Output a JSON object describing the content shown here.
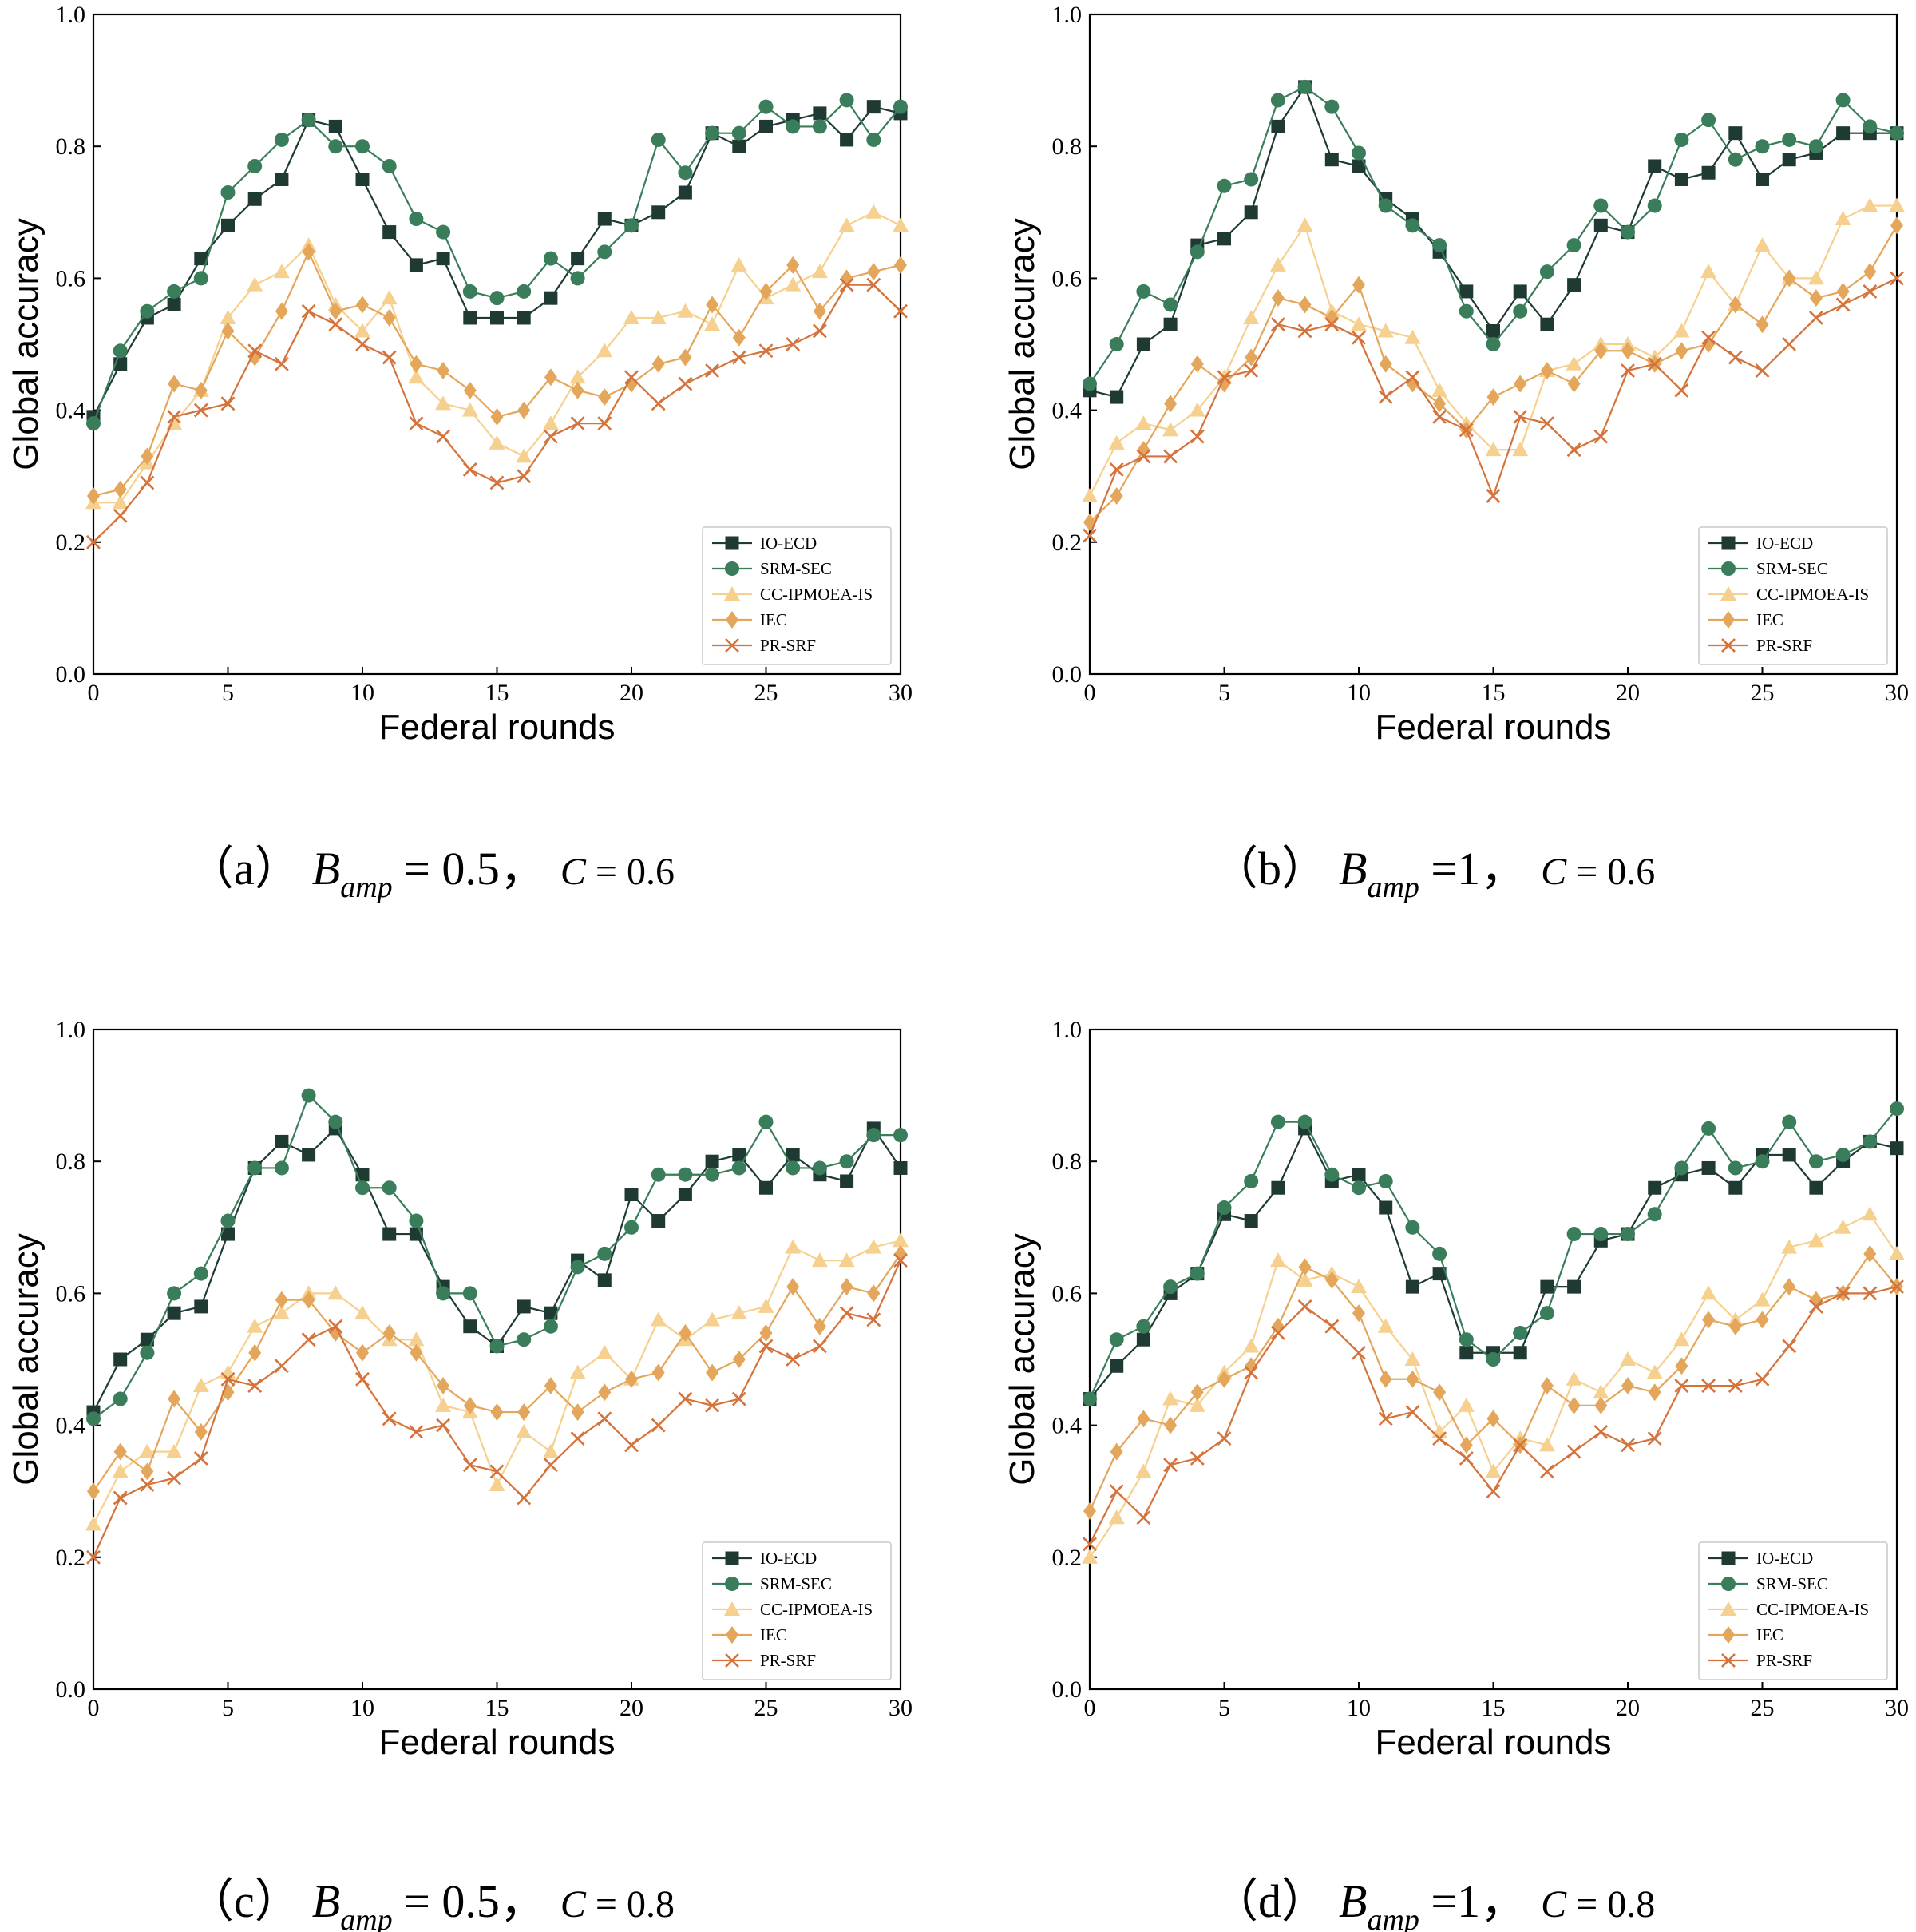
{
  "colors": {
    "IO-ECD": "#1f3a33",
    "SRM-SEC": "#3a7d5a",
    "CC-IPMOEA-IS": "#f6d08f",
    "IEC": "#e3a65a",
    "PR-SRF": "#d4733b"
  },
  "markers": {
    "IO-ECD": "square",
    "SRM-SEC": "circle",
    "CC-IPMOEA-IS": "triangle",
    "IEC": "diamond",
    "PR-SRF": "x"
  },
  "chart_data": [
    {
      "type": "line",
      "panel": "a",
      "xlabel": "Federal rounds",
      "ylabel": "Global accuracy",
      "xlim": [
        0,
        30
      ],
      "ylim": [
        0,
        1.0
      ],
      "xticks": [
        "0",
        "5",
        "10",
        "15",
        "20",
        "25",
        "30"
      ],
      "yticks": [
        "0.0",
        "0.2",
        "0.4",
        "0.6",
        "0.8",
        "1.0"
      ],
      "legend_position": "bottom-right",
      "caption": {
        "label": "（a）",
        "var": "B",
        "sub": "amp",
        "eq": " = 0.5，",
        "c": "C",
        "ceq": " = 0.6"
      },
      "x": [
        0,
        1,
        2,
        3,
        4,
        5,
        6,
        7,
        8,
        9,
        10,
        11,
        12,
        13,
        14,
        15,
        16,
        17,
        18,
        19,
        20,
        21,
        22,
        23,
        24,
        25,
        26,
        27,
        28,
        29,
        30
      ],
      "series": [
        {
          "name": "IO-ECD",
          "values": [
            0.39,
            0.47,
            0.54,
            0.56,
            0.63,
            0.68,
            0.72,
            0.75,
            0.84,
            0.83,
            0.75,
            0.67,
            0.62,
            0.63,
            0.54,
            0.54,
            0.54,
            0.57,
            0.63,
            0.69,
            0.68,
            0.7,
            0.73,
            0.82,
            0.8,
            0.83,
            0.84,
            0.85,
            0.81,
            0.86,
            0.85
          ]
        },
        {
          "name": "SRM-SEC",
          "values": [
            0.38,
            0.49,
            0.55,
            0.58,
            0.6,
            0.73,
            0.77,
            0.81,
            0.84,
            0.8,
            0.8,
            0.77,
            0.69,
            0.67,
            0.58,
            0.57,
            0.58,
            0.63,
            0.6,
            0.64,
            0.68,
            0.81,
            0.76,
            0.82,
            0.82,
            0.86,
            0.83,
            0.83,
            0.87,
            0.81,
            0.86
          ]
        },
        {
          "name": "CC-IPMOEA-IS",
          "values": [
            0.26,
            0.26,
            0.32,
            0.38,
            0.43,
            0.54,
            0.59,
            0.61,
            0.65,
            0.56,
            0.52,
            0.57,
            0.45,
            0.41,
            0.4,
            0.35,
            0.33,
            0.38,
            0.45,
            0.49,
            0.54,
            0.54,
            0.55,
            0.53,
            0.62,
            0.57,
            0.59,
            0.61,
            0.68,
            0.7,
            0.68
          ]
        },
        {
          "name": "IEC",
          "values": [
            0.27,
            0.28,
            0.33,
            0.44,
            0.43,
            0.52,
            0.48,
            0.55,
            0.64,
            0.55,
            0.56,
            0.54,
            0.47,
            0.46,
            0.43,
            0.39,
            0.4,
            0.45,
            0.43,
            0.42,
            0.44,
            0.47,
            0.48,
            0.56,
            0.51,
            0.58,
            0.62,
            0.55,
            0.6,
            0.61,
            0.62
          ]
        },
        {
          "name": "PR-SRF",
          "values": [
            0.2,
            0.24,
            0.29,
            0.39,
            0.4,
            0.41,
            0.49,
            0.47,
            0.55,
            0.53,
            0.5,
            0.48,
            0.38,
            0.36,
            0.31,
            0.29,
            0.3,
            0.36,
            0.38,
            0.38,
            0.45,
            0.41,
            0.44,
            0.46,
            0.48,
            0.49,
            0.5,
            0.52,
            0.59,
            0.59,
            0.55
          ]
        }
      ]
    },
    {
      "type": "line",
      "panel": "b",
      "xlabel": "Federal rounds",
      "ylabel": "Global accuracy",
      "xlim": [
        0,
        30
      ],
      "ylim": [
        0,
        1.0
      ],
      "xticks": [
        "0",
        "5",
        "10",
        "15",
        "20",
        "25",
        "30"
      ],
      "yticks": [
        "0.0",
        "0.2",
        "0.4",
        "0.6",
        "0.8",
        "1.0"
      ],
      "legend_position": "bottom-right",
      "caption": {
        "label": "（b）",
        "var": "B",
        "sub": "amp",
        "eq": " =1，",
        "c": "C",
        "ceq": " = 0.6"
      },
      "x": [
        0,
        1,
        2,
        3,
        4,
        5,
        6,
        7,
        8,
        9,
        10,
        11,
        12,
        13,
        14,
        15,
        16,
        17,
        18,
        19,
        20,
        21,
        22,
        23,
        24,
        25,
        26,
        27,
        28,
        29,
        30
      ],
      "series": [
        {
          "name": "IO-ECD",
          "values": [
            0.43,
            0.42,
            0.5,
            0.53,
            0.65,
            0.66,
            0.7,
            0.83,
            0.89,
            0.78,
            0.77,
            0.72,
            0.69,
            0.64,
            0.58,
            0.52,
            0.58,
            0.53,
            0.59,
            0.68,
            0.67,
            0.77,
            0.75,
            0.76,
            0.82,
            0.75,
            0.78,
            0.79,
            0.82,
            0.82,
            0.82
          ]
        },
        {
          "name": "SRM-SEC",
          "values": [
            0.44,
            0.5,
            0.58,
            0.56,
            0.64,
            0.74,
            0.75,
            0.87,
            0.89,
            0.86,
            0.79,
            0.71,
            0.68,
            0.65,
            0.55,
            0.5,
            0.55,
            0.61,
            0.65,
            0.71,
            0.67,
            0.71,
            0.81,
            0.84,
            0.78,
            0.8,
            0.81,
            0.8,
            0.87,
            0.83,
            0.82
          ]
        },
        {
          "name": "CC-IPMOEA-IS",
          "values": [
            0.27,
            0.35,
            0.38,
            0.37,
            0.4,
            0.45,
            0.54,
            0.62,
            0.68,
            0.55,
            0.53,
            0.52,
            0.51,
            0.43,
            0.38,
            0.34,
            0.34,
            0.46,
            0.47,
            0.5,
            0.5,
            0.48,
            0.52,
            0.61,
            0.56,
            0.65,
            0.6,
            0.6,
            0.69,
            0.71,
            0.71
          ]
        },
        {
          "name": "IEC",
          "values": [
            0.23,
            0.27,
            0.34,
            0.41,
            0.47,
            0.44,
            0.48,
            0.57,
            0.56,
            0.54,
            0.59,
            0.47,
            0.44,
            0.41,
            0.37,
            0.42,
            0.44,
            0.46,
            0.44,
            0.49,
            0.49,
            0.47,
            0.49,
            0.5,
            0.56,
            0.53,
            0.6,
            0.57,
            0.58,
            0.61,
            0.68
          ]
        },
        {
          "name": "PR-SRF",
          "values": [
            0.21,
            0.31,
            0.33,
            0.33,
            0.36,
            0.45,
            0.46,
            0.53,
            0.52,
            0.53,
            0.51,
            0.42,
            0.45,
            0.39,
            0.37,
            0.27,
            0.39,
            0.38,
            0.34,
            0.36,
            0.46,
            0.47,
            0.43,
            0.51,
            0.48,
            0.46,
            0.5,
            0.54,
            0.56,
            0.58,
            0.6
          ]
        }
      ]
    },
    {
      "type": "line",
      "panel": "c",
      "xlabel": "Federal rounds",
      "ylabel": "Global accuracy",
      "xlim": [
        0,
        30
      ],
      "ylim": [
        0,
        1.0
      ],
      "xticks": [
        "0",
        "5",
        "10",
        "15",
        "20",
        "25",
        "30"
      ],
      "yticks": [
        "0.0",
        "0.2",
        "0.4",
        "0.6",
        "0.8",
        "1.0"
      ],
      "legend_position": "bottom-right",
      "caption": {
        "label": "（c）",
        "var": "B",
        "sub": "amp",
        "eq": " = 0.5，",
        "c": "C",
        "ceq": " = 0.8"
      },
      "x": [
        0,
        1,
        2,
        3,
        4,
        5,
        6,
        7,
        8,
        9,
        10,
        11,
        12,
        13,
        14,
        15,
        16,
        17,
        18,
        19,
        20,
        21,
        22,
        23,
        24,
        25,
        26,
        27,
        28,
        29,
        30
      ],
      "series": [
        {
          "name": "IO-ECD",
          "values": [
            0.42,
            0.5,
            0.53,
            0.57,
            0.58,
            0.69,
            0.79,
            0.83,
            0.81,
            0.85,
            0.78,
            0.69,
            0.69,
            0.61,
            0.55,
            0.52,
            0.58,
            0.57,
            0.65,
            0.62,
            0.75,
            0.71,
            0.75,
            0.8,
            0.81,
            0.76,
            0.81,
            0.78,
            0.77,
            0.85,
            0.79
          ]
        },
        {
          "name": "SRM-SEC",
          "values": [
            0.41,
            0.44,
            0.51,
            0.6,
            0.63,
            0.71,
            0.79,
            0.79,
            0.9,
            0.86,
            0.76,
            0.76,
            0.71,
            0.6,
            0.6,
            0.52,
            0.53,
            0.55,
            0.64,
            0.66,
            0.7,
            0.78,
            0.78,
            0.78,
            0.79,
            0.86,
            0.79,
            0.79,
            0.8,
            0.84,
            0.84
          ]
        },
        {
          "name": "CC-IPMOEA-IS",
          "values": [
            0.25,
            0.33,
            0.36,
            0.36,
            0.46,
            0.48,
            0.55,
            0.57,
            0.6,
            0.6,
            0.57,
            0.53,
            0.53,
            0.43,
            0.42,
            0.31,
            0.39,
            0.36,
            0.48,
            0.51,
            0.47,
            0.56,
            0.53,
            0.56,
            0.57,
            0.58,
            0.67,
            0.65,
            0.65,
            0.67,
            0.68
          ]
        },
        {
          "name": "IEC",
          "values": [
            0.3,
            0.36,
            0.33,
            0.44,
            0.39,
            0.45,
            0.51,
            0.59,
            0.59,
            0.54,
            0.51,
            0.54,
            0.51,
            0.46,
            0.43,
            0.42,
            0.42,
            0.46,
            0.42,
            0.45,
            0.47,
            0.48,
            0.54,
            0.48,
            0.5,
            0.54,
            0.61,
            0.55,
            0.61,
            0.6,
            0.66
          ]
        },
        {
          "name": "PR-SRF",
          "values": [
            0.2,
            0.29,
            0.31,
            0.32,
            0.35,
            0.47,
            0.46,
            0.49,
            0.53,
            0.55,
            0.47,
            0.41,
            0.39,
            0.4,
            0.34,
            0.33,
            0.29,
            0.34,
            0.38,
            0.41,
            0.37,
            0.4,
            0.44,
            0.43,
            0.44,
            0.52,
            0.5,
            0.52,
            0.57,
            0.56,
            0.65
          ]
        }
      ]
    },
    {
      "type": "line",
      "panel": "d",
      "xlabel": "Federal rounds",
      "ylabel": "Global accuracy",
      "xlim": [
        0,
        30
      ],
      "ylim": [
        0,
        1.0
      ],
      "xticks": [
        "0",
        "5",
        "10",
        "15",
        "20",
        "25",
        "30"
      ],
      "yticks": [
        "0.0",
        "0.2",
        "0.4",
        "0.6",
        "0.8",
        "1.0"
      ],
      "legend_position": "bottom-right",
      "caption": {
        "label": "（d）",
        "var": "B",
        "sub": "amp",
        "eq": " =1，",
        "c": "C",
        "ceq": " = 0.8"
      },
      "x": [
        0,
        1,
        2,
        3,
        4,
        5,
        6,
        7,
        8,
        9,
        10,
        11,
        12,
        13,
        14,
        15,
        16,
        17,
        18,
        19,
        20,
        21,
        22,
        23,
        24,
        25,
        26,
        27,
        28,
        29,
        30
      ],
      "series": [
        {
          "name": "IO-ECD",
          "values": [
            0.44,
            0.49,
            0.53,
            0.6,
            0.63,
            0.72,
            0.71,
            0.76,
            0.85,
            0.77,
            0.78,
            0.73,
            0.61,
            0.63,
            0.51,
            0.51,
            0.51,
            0.61,
            0.61,
            0.68,
            0.69,
            0.76,
            0.78,
            0.79,
            0.76,
            0.81,
            0.81,
            0.76,
            0.8,
            0.83,
            0.82
          ]
        },
        {
          "name": "SRM-SEC",
          "values": [
            0.44,
            0.53,
            0.55,
            0.61,
            0.63,
            0.73,
            0.77,
            0.86,
            0.86,
            0.78,
            0.76,
            0.77,
            0.7,
            0.66,
            0.53,
            0.5,
            0.54,
            0.57,
            0.69,
            0.69,
            0.69,
            0.72,
            0.79,
            0.85,
            0.79,
            0.8,
            0.86,
            0.8,
            0.81,
            0.83,
            0.88
          ]
        },
        {
          "name": "CC-IPMOEA-IS",
          "values": [
            0.2,
            0.26,
            0.33,
            0.44,
            0.43,
            0.48,
            0.52,
            0.65,
            0.62,
            0.63,
            0.61,
            0.55,
            0.5,
            0.39,
            0.43,
            0.33,
            0.38,
            0.37,
            0.47,
            0.45,
            0.5,
            0.48,
            0.53,
            0.6,
            0.56,
            0.59,
            0.67,
            0.68,
            0.7,
            0.72,
            0.66
          ]
        },
        {
          "name": "IEC",
          "values": [
            0.27,
            0.36,
            0.41,
            0.4,
            0.45,
            0.47,
            0.49,
            0.55,
            0.64,
            0.62,
            0.57,
            0.47,
            0.47,
            0.45,
            0.37,
            0.41,
            0.37,
            0.46,
            0.43,
            0.43,
            0.46,
            0.45,
            0.49,
            0.56,
            0.55,
            0.56,
            0.61,
            0.59,
            0.6,
            0.66,
            0.61
          ]
        },
        {
          "name": "PR-SRF",
          "values": [
            0.22,
            0.3,
            0.26,
            0.34,
            0.35,
            0.38,
            0.48,
            0.54,
            0.58,
            0.55,
            0.51,
            0.41,
            0.42,
            0.38,
            0.35,
            0.3,
            0.37,
            0.33,
            0.36,
            0.39,
            0.37,
            0.38,
            0.46,
            0.46,
            0.46,
            0.47,
            0.52,
            0.58,
            0.6,
            0.6,
            0.61
          ]
        }
      ]
    }
  ]
}
